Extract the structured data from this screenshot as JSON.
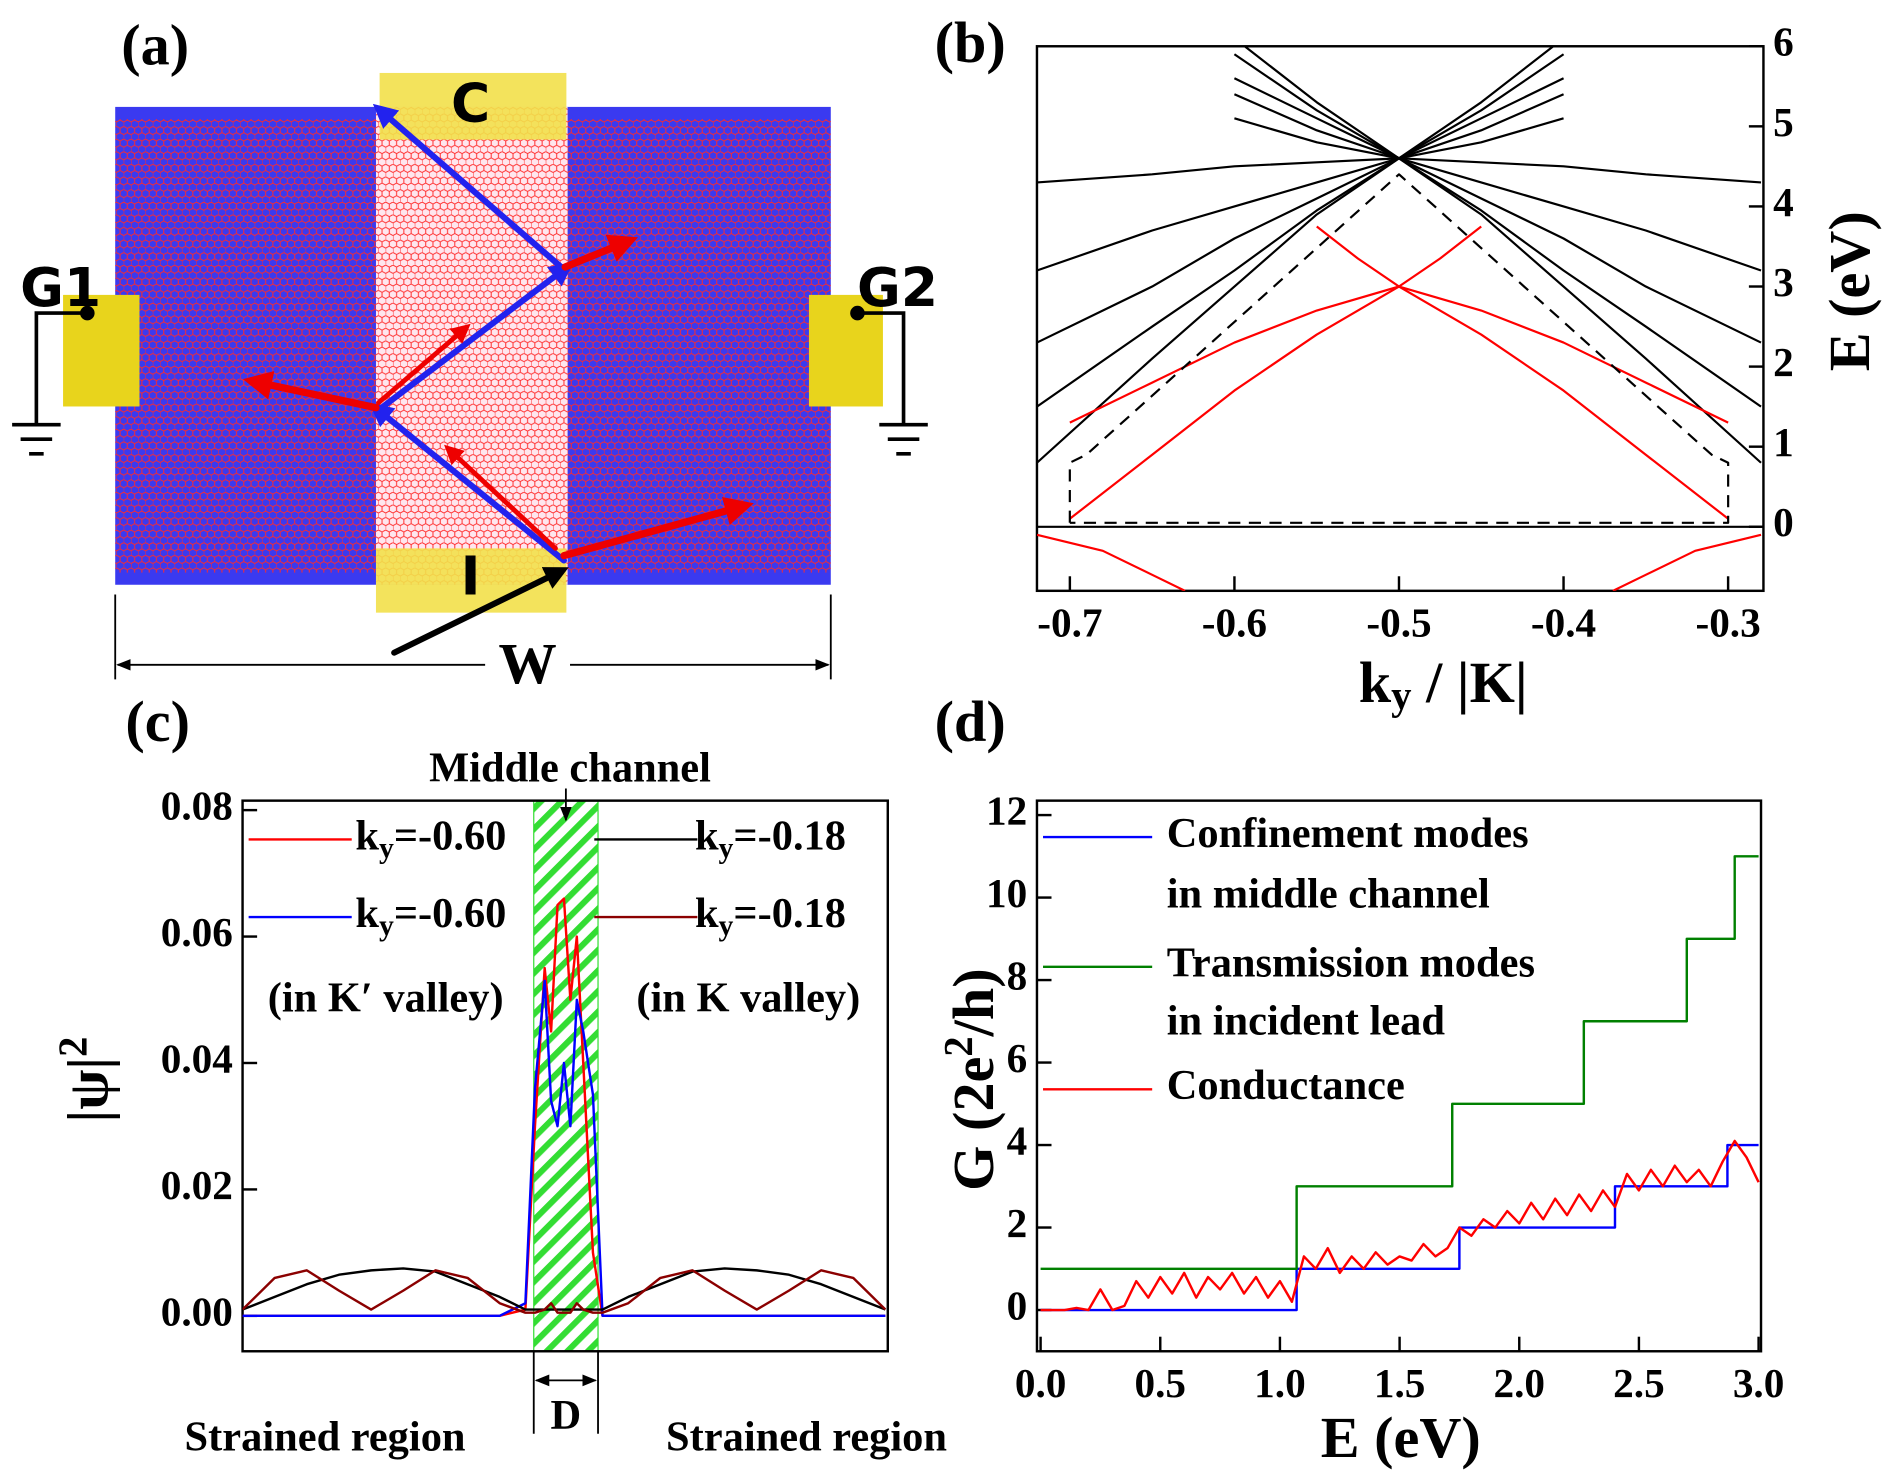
{
  "diagram": {
    "label": "(a)",
    "contacts": [
      "C",
      "G1",
      "G2",
      "I"
    ],
    "width_label": "W"
  },
  "chart_data": [
    {
      "type": "line",
      "label": "(b)",
      "xlabel": [
        "k",
        "y",
        " / |K|"
      ],
      "ylabel": "E (eV)",
      "yaxis": "right",
      "xlim": [
        -0.72,
        -0.28
      ],
      "ylim": [
        -0.8,
        6
      ],
      "xticks": [
        -0.7,
        -0.6,
        -0.5,
        -0.4,
        -0.3
      ],
      "yticks": [
        0,
        1,
        2,
        3,
        4,
        5,
        6
      ],
      "series": [
        {
          "color": "#000000",
          "x": [
            -0.72,
            -0.65,
            -0.6,
            -0.55,
            -0.5,
            -0.45,
            -0.4
          ],
          "values": [
            0.8,
            2.1,
            3.0,
            3.9,
            4.6,
            5.3,
            6.1
          ]
        },
        {
          "color": "#000000",
          "x": [
            -0.72,
            -0.65,
            -0.6,
            -0.55,
            -0.5,
            -0.45,
            -0.4
          ],
          "values": [
            1.5,
            2.5,
            3.2,
            3.95,
            4.6,
            5.2,
            5.9
          ]
        },
        {
          "color": "#000000",
          "x": [
            -0.72,
            -0.65,
            -0.6,
            -0.55,
            -0.5,
            -0.45,
            -0.4
          ],
          "values": [
            2.3,
            3.0,
            3.6,
            4.1,
            4.6,
            5.1,
            5.6
          ]
        },
        {
          "color": "#000000",
          "x": [
            -0.72,
            -0.65,
            -0.6,
            -0.55,
            -0.5,
            -0.45,
            -0.4
          ],
          "values": [
            3.2,
            3.7,
            4.0,
            4.3,
            4.6,
            4.95,
            5.4
          ]
        },
        {
          "color": "#000000",
          "x": [
            -0.72,
            -0.65,
            -0.6,
            -0.55,
            -0.5,
            -0.45,
            -0.4
          ],
          "values": [
            4.3,
            4.4,
            4.5,
            4.55,
            4.6,
            4.8,
            5.1
          ]
        },
        {
          "color": "#000000",
          "x": [
            -0.6,
            -0.55,
            -0.5,
            -0.45,
            -0.4,
            -0.35,
            -0.28
          ],
          "values": [
            6.1,
            5.3,
            4.6,
            3.9,
            3.0,
            2.1,
            0.8
          ]
        },
        {
          "color": "#000000",
          "x": [
            -0.6,
            -0.55,
            -0.5,
            -0.45,
            -0.4,
            -0.35,
            -0.28
          ],
          "values": [
            5.9,
            5.2,
            4.6,
            3.95,
            3.2,
            2.5,
            1.5
          ]
        },
        {
          "color": "#000000",
          "x": [
            -0.6,
            -0.55,
            -0.5,
            -0.45,
            -0.4,
            -0.35,
            -0.28
          ],
          "values": [
            5.6,
            5.1,
            4.6,
            4.1,
            3.6,
            3.0,
            2.3
          ]
        },
        {
          "color": "#000000",
          "x": [
            -0.6,
            -0.55,
            -0.5,
            -0.45,
            -0.4,
            -0.35,
            -0.28
          ],
          "values": [
            5.4,
            4.95,
            4.6,
            4.3,
            4.0,
            3.7,
            3.2
          ]
        },
        {
          "color": "#000000",
          "x": [
            -0.6,
            -0.55,
            -0.5,
            -0.45,
            -0.4,
            -0.35,
            -0.28
          ],
          "values": [
            5.1,
            4.8,
            4.6,
            4.55,
            4.5,
            4.4,
            4.3
          ]
        },
        {
          "color": "#ff0000",
          "x": [
            -0.7,
            -0.65,
            -0.6,
            -0.55,
            -0.5
          ],
          "values": [
            0.1,
            0.9,
            1.7,
            2.4,
            3.0
          ]
        },
        {
          "color": "#ff0000",
          "x": [
            -0.7,
            -0.65,
            -0.6,
            -0.55,
            -0.5
          ],
          "values": [
            1.3,
            1.8,
            2.3,
            2.7,
            3.0
          ]
        },
        {
          "color": "#ff0000",
          "x": [
            -0.55,
            -0.525,
            -0.5
          ],
          "values": [
            3.75,
            3.35,
            3.0
          ]
        },
        {
          "color": "#ff0000",
          "x": [
            -0.5,
            -0.45,
            -0.4,
            -0.35,
            -0.3
          ],
          "values": [
            3.0,
            2.4,
            1.7,
            0.9,
            0.1
          ]
        },
        {
          "color": "#ff0000",
          "x": [
            -0.5,
            -0.45,
            -0.4,
            -0.35,
            -0.3
          ],
          "values": [
            3.0,
            2.7,
            2.3,
            1.8,
            1.3
          ]
        },
        {
          "color": "#ff0000",
          "x": [
            -0.5,
            -0.475,
            -0.45
          ],
          "values": [
            3.0,
            3.35,
            3.75
          ]
        },
        {
          "color": "#ff0000",
          "x": [
            -0.72,
            -0.68,
            -0.65,
            -0.63
          ],
          "values": [
            -0.1,
            -0.3,
            -0.6,
            -0.8
          ]
        },
        {
          "color": "#ff0000",
          "x": [
            -0.37,
            -0.35,
            -0.32,
            -0.28
          ],
          "values": [
            -0.8,
            -0.6,
            -0.3,
            -0.1
          ]
        },
        {
          "color": "#000000",
          "x": [
            -0.72,
            -0.28
          ],
          "values": [
            0,
            0
          ]
        },
        {
          "color": "#000000",
          "dash": true,
          "x": [
            -0.7,
            -0.7,
            -0.69,
            -0.5,
            -0.31,
            -0.3,
            -0.3,
            -0.7
          ],
          "values": [
            0.05,
            0.8,
            0.9,
            4.4,
            0.9,
            0.8,
            0.05,
            0.05
          ]
        }
      ]
    },
    {
      "type": "line",
      "label": "(c)",
      "ylabel": [
        "|ψ|",
        "2"
      ],
      "annotations": {
        "channel": "Middle channel",
        "left_region": "Strained region",
        "right_region": "Strained region",
        "width": "D",
        "left_valley": "(in K′ valley)",
        "right_valley": "(in K valley)"
      },
      "highlight": [
        0.453,
        0.553
      ],
      "highlight_color": "#33dd33",
      "xlim": [
        0,
        1
      ],
      "ylim": [
        -0.0056,
        0.0815
      ],
      "yticks": [
        {
          "value": 0,
          "label": "0.00"
        },
        {
          "value": 0.02,
          "label": "0.02"
        },
        {
          "value": 0.04,
          "label": "0.04"
        },
        {
          "value": 0.06,
          "label": "0.06"
        },
        {
          "value": 0.08,
          "label": "0.08"
        }
      ],
      "x": [
        0,
        0.05,
        0.1,
        0.15,
        0.2,
        0.25,
        0.3,
        0.35,
        0.4,
        0.44,
        0.455,
        0.47,
        0.48,
        0.49,
        0.5,
        0.51,
        0.52,
        0.53,
        0.545,
        0.56,
        0.6,
        0.65,
        0.7,
        0.75,
        0.8,
        0.85,
        0.9,
        0.95,
        1.0
      ],
      "series": [
        {
          "name": [
            "k",
            "y",
            "=-0.60"
          ],
          "color": "#ff0000",
          "values": [
            0,
            0,
            0,
            0,
            0,
            0,
            0,
            0,
            0,
            0.001,
            0.03,
            0.055,
            0.045,
            0.065,
            0.066,
            0.05,
            0.06,
            0.04,
            0.01,
            0,
            0,
            0,
            0,
            0,
            0,
            0,
            0,
            0,
            0
          ]
        },
        {
          "name": [
            "k",
            "y",
            "=-0.60"
          ],
          "color": "#0000ff",
          "values": [
            0,
            0,
            0,
            0,
            0,
            0,
            0,
            0,
            0,
            0.002,
            0.036,
            0.053,
            0.034,
            0.03,
            0.04,
            0.03,
            0.05,
            0.045,
            0.035,
            0,
            0,
            0,
            0,
            0,
            0,
            0,
            0,
            0,
            0
          ]
        },
        {
          "name": [
            "k",
            "y",
            "=-0.18"
          ],
          "color": "#000000",
          "values": [
            0.001,
            0.003,
            0.005,
            0.0065,
            0.0072,
            0.0075,
            0.007,
            0.005,
            0.003,
            0.001,
            0.001,
            0.001,
            0.001,
            0.001,
            0.001,
            0.001,
            0.001,
            0.001,
            0.001,
            0.001,
            0.003,
            0.005,
            0.007,
            0.0075,
            0.0072,
            0.0065,
            0.005,
            0.003,
            0.001
          ]
        },
        {
          "name": [
            "k",
            "y",
            "=-0.18"
          ],
          "color": "#8b0000",
          "values": [
            0.001,
            0.006,
            0.0072,
            0.004,
            0.001,
            0.004,
            0.0072,
            0.006,
            0.002,
            0.0005,
            0.0005,
            0.001,
            0.002,
            0.0005,
            0.0005,
            0.0005,
            0.002,
            0.001,
            0.0005,
            0.0005,
            0.002,
            0.006,
            0.0072,
            0.004,
            0.001,
            0.004,
            0.0072,
            0.006,
            0.001
          ]
        }
      ]
    },
    {
      "type": "line",
      "label": "(d)",
      "xlabel": "E (eV)",
      "ylabel": [
        "G (2e",
        "2",
        "/h)"
      ],
      "xlim": [
        0,
        3
      ],
      "ylim": [
        -1,
        12.35
      ],
      "xticks": [
        {
          "value": 0,
          "label": "0.0"
        },
        {
          "value": 0.5,
          "label": "0.5"
        },
        {
          "value": 1,
          "label": "1.0"
        },
        {
          "value": 1.5,
          "label": "1.5"
        },
        {
          "value": 2,
          "label": "2.0"
        },
        {
          "value": 2.5,
          "label": "2.5"
        },
        {
          "value": 3,
          "label": "3.0"
        }
      ],
      "yticks": [
        0,
        2,
        4,
        6,
        8,
        10,
        12
      ],
      "series": [
        {
          "name": [
            "Confinement modes",
            "in middle channel"
          ],
          "color": "#0000ff",
          "x": [
            0,
            1.07,
            1.07,
            1.75,
            1.75,
            2.4,
            2.4,
            2.87,
            2.87,
            3.0
          ],
          "values": [
            0,
            0,
            1,
            1,
            2,
            2,
            3,
            3,
            4,
            4
          ]
        },
        {
          "name": [
            "Transmission modes",
            "in incident lead"
          ],
          "color": "#008000",
          "x": [
            0,
            1.07,
            1.07,
            1.72,
            1.72,
            2.27,
            2.27,
            2.7,
            2.7,
            2.9,
            2.9,
            3.0
          ],
          "values": [
            1,
            1,
            3,
            3,
            5,
            5,
            7,
            7,
            9,
            9,
            11,
            11
          ]
        },
        {
          "name": [
            "Conductance"
          ],
          "color": "#ff0000",
          "x": [
            0,
            0.05,
            0.1,
            0.15,
            0.2,
            0.25,
            0.3,
            0.35,
            0.4,
            0.45,
            0.5,
            0.55,
            0.6,
            0.65,
            0.7,
            0.75,
            0.8,
            0.85,
            0.9,
            0.95,
            1.0,
            1.05,
            1.1,
            1.15,
            1.2,
            1.25,
            1.3,
            1.35,
            1.4,
            1.45,
            1.5,
            1.55,
            1.6,
            1.65,
            1.7,
            1.75,
            1.8,
            1.85,
            1.9,
            1.95,
            2.0,
            2.05,
            2.1,
            2.15,
            2.2,
            2.25,
            2.3,
            2.35,
            2.4,
            2.45,
            2.5,
            2.55,
            2.6,
            2.65,
            2.7,
            2.75,
            2.8,
            2.85,
            2.9,
            2.95,
            3.0
          ],
          "values": [
            0,
            0,
            0,
            0.05,
            0,
            0.5,
            0,
            0.1,
            0.7,
            0.3,
            0.8,
            0.4,
            0.9,
            0.3,
            0.8,
            0.5,
            0.9,
            0.4,
            0.8,
            0.3,
            0.7,
            0.2,
            1.3,
            1.0,
            1.5,
            0.9,
            1.3,
            1.0,
            1.4,
            1.1,
            1.3,
            1.2,
            1.6,
            1.3,
            1.5,
            2.0,
            1.8,
            2.2,
            2.0,
            2.4,
            2.1,
            2.6,
            2.2,
            2.7,
            2.3,
            2.8,
            2.4,
            2.9,
            2.5,
            3.3,
            2.9,
            3.4,
            3.0,
            3.5,
            3.1,
            3.4,
            3.0,
            3.6,
            4.1,
            3.7,
            3.1
          ]
        }
      ]
    }
  ]
}
